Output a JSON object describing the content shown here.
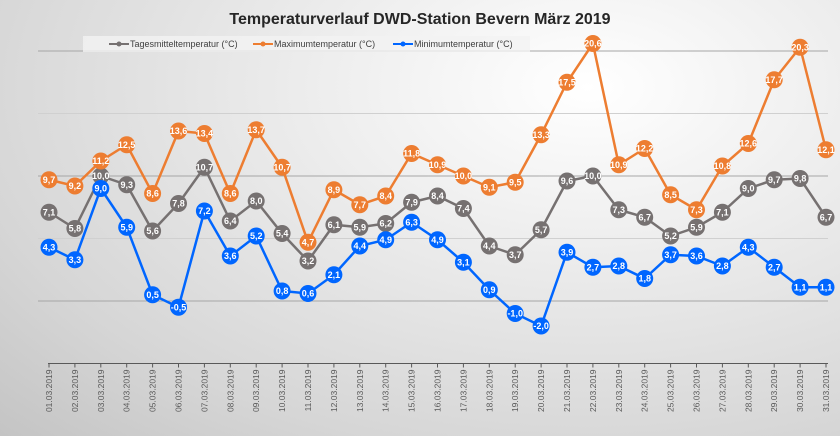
{
  "chart_data": {
    "type": "line",
    "title": "Temperaturverlauf DWD-Station Bevern März 2019",
    "xlabel": "",
    "ylabel": "",
    "ylim": [
      -5,
      25
    ],
    "grid": true,
    "legend_position": "top",
    "categories": [
      "01.03.2019",
      "02.03.2019",
      "03.03.2019",
      "04.03.2019",
      "05.03.2019",
      "06.03.2019",
      "07.03.2019",
      "08.03.2019",
      "09.03.2019",
      "10.03.2019",
      "11.03.2019",
      "12.03.2019",
      "13.03.2019",
      "14.03.2019",
      "15.03.2019",
      "16.03.2019",
      "17.03.2019",
      "18.03.2019",
      "19.03.2019",
      "20.03.2019",
      "21.03.2019",
      "22.03.2019",
      "23.03.2019",
      "24.03.2019",
      "25.03.2019",
      "26.03.2019",
      "27.03.2019",
      "28.03.2019",
      "29.03.2019",
      "30.03.2019",
      "31.03.2019"
    ],
    "series": [
      {
        "name": "Tagesmitteltemperatur (°C)",
        "color": "#767171",
        "values": [
          7.1,
          5.8,
          10.0,
          9.3,
          5.6,
          7.8,
          10.7,
          6.4,
          8.0,
          5.4,
          3.2,
          6.1,
          5.9,
          6.2,
          7.9,
          8.4,
          7.4,
          4.4,
          3.7,
          5.7,
          9.6,
          10.0,
          7.3,
          6.7,
          5.2,
          5.9,
          7.1,
          9.0,
          9.7,
          9.8,
          6.7
        ]
      },
      {
        "name": "Maximumtemperatur (°C)",
        "color": "#ed7d31",
        "values": [
          9.7,
          9.2,
          11.2,
          12.5,
          8.6,
          13.6,
          13.4,
          8.6,
          13.7,
          10.7,
          4.7,
          8.9,
          7.7,
          8.4,
          11.8,
          10.9,
          10.0,
          9.1,
          9.5,
          13.3,
          17.5,
          20.6,
          10.9,
          12.2,
          8.5,
          7.3,
          10.8,
          12.6,
          17.7,
          20.3,
          12.1
        ]
      },
      {
        "name": "Minimumtemperatur (°C)",
        "color": "#0066ff",
        "values": [
          4.3,
          3.3,
          9.0,
          5.9,
          0.5,
          -0.5,
          7.2,
          3.6,
          5.2,
          0.8,
          0.6,
          2.1,
          4.4,
          4.9,
          6.3,
          4.9,
          3.1,
          0.9,
          -1.0,
          -2.0,
          3.9,
          2.7,
          2.8,
          1.8,
          3.7,
          3.6,
          2.8,
          4.3,
          2.7,
          1.1,
          1.1
        ]
      }
    ]
  }
}
